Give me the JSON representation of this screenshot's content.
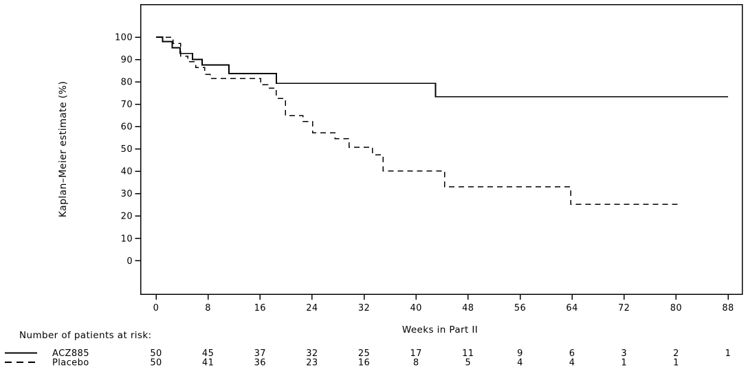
{
  "figure": {
    "background_color": "#ffffff",
    "line_color": "#000000",
    "text_color": "#000000"
  },
  "chart_data": {
    "type": "line",
    "subtype": "kaplan-meier-step",
    "title": "",
    "xlabel": "Weeks in Part II",
    "ylabel": "Kaplan–Meier estimate (%)",
    "xlim": [
      0,
      88
    ],
    "ylim": [
      0,
      100
    ],
    "x_ticks": [
      0,
      8,
      16,
      24,
      32,
      40,
      48,
      56,
      64,
      72,
      80,
      88
    ],
    "y_ticks": [
      0,
      10,
      20,
      30,
      40,
      50,
      60,
      70,
      80,
      90,
      100
    ],
    "grid": false,
    "legend_position": "bottom-left",
    "series": [
      {
        "name": "ACZ885",
        "line_style": "solid",
        "color": "#000000",
        "steps": [
          [
            0,
            100
          ],
          [
            1.0,
            98
          ],
          [
            2.5,
            95.2
          ],
          [
            3.7,
            92.7
          ],
          [
            5.6,
            90
          ],
          [
            7.1,
            87.5
          ],
          [
            11.2,
            83.7
          ],
          [
            18.5,
            79.3
          ],
          [
            43,
            73.3
          ]
        ],
        "end_week": 88,
        "final_value": 73.3
      },
      {
        "name": "Placebo",
        "line_style": "dashed",
        "color": "#000000",
        "steps": [
          [
            0,
            100
          ],
          [
            2.6,
            97.1
          ],
          [
            3.8,
            91.5
          ],
          [
            4.9,
            89
          ],
          [
            6.1,
            86.4
          ],
          [
            7.5,
            83.3
          ],
          [
            8.3,
            81.5
          ],
          [
            16.1,
            78.7
          ],
          [
            17.2,
            77.2
          ],
          [
            18.5,
            72.6
          ],
          [
            19.9,
            64.9
          ],
          [
            22.6,
            62.3
          ],
          [
            24.1,
            57.2
          ],
          [
            27.5,
            54.6
          ],
          [
            29.7,
            50.8
          ],
          [
            33.3,
            47.4
          ],
          [
            34.9,
            40.2
          ],
          [
            44.4,
            33
          ],
          [
            63.8,
            25.2
          ]
        ],
        "end_week": 80.5,
        "final_value": 25.2
      }
    ]
  },
  "risk_table": {
    "header": "Number of patients at risk:",
    "weeks": [
      0,
      8,
      16,
      24,
      32,
      40,
      48,
      56,
      64,
      72,
      80,
      88
    ],
    "rows": [
      {
        "label": "ACZ885",
        "line_style": "solid",
        "counts": [
          "50",
          "45",
          "37",
          "32",
          "25",
          "17",
          "11",
          "9",
          "6",
          "3",
          "2",
          "1"
        ]
      },
      {
        "label": "Placebo",
        "line_style": "dashed",
        "counts": [
          "50",
          "41",
          "36",
          "23",
          "16",
          "8",
          "5",
          "4",
          "4",
          "1",
          "1",
          ""
        ]
      }
    ]
  }
}
